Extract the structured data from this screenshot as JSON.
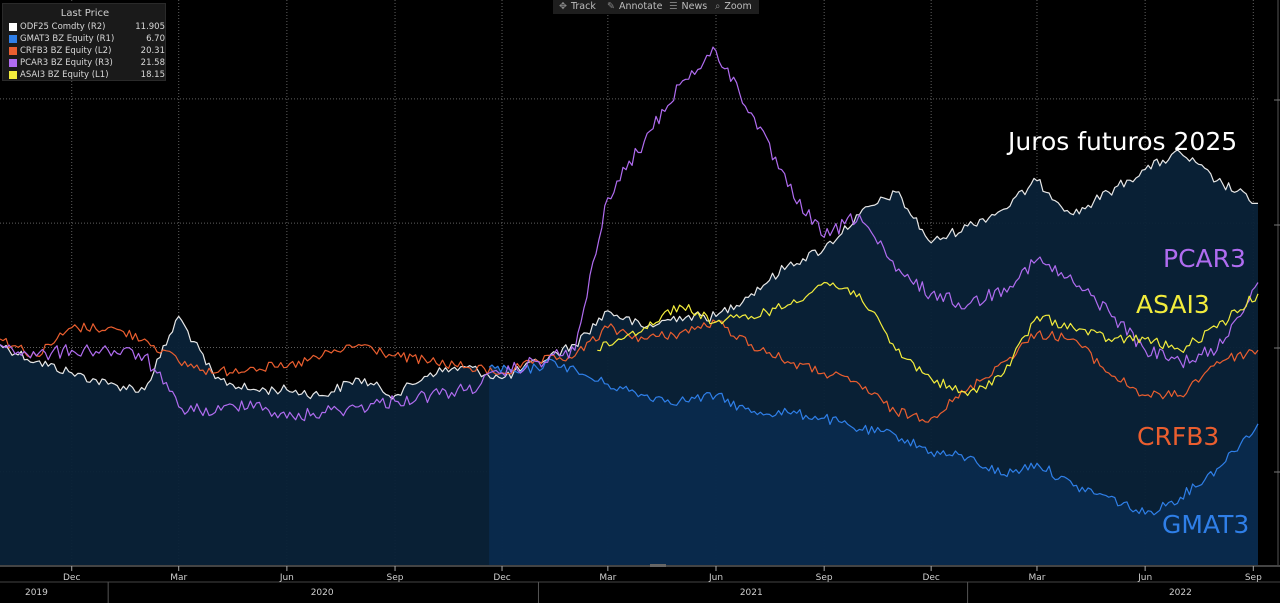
{
  "toolbar": {
    "items": [
      {
        "label": "Track"
      },
      {
        "label": "Annotate"
      },
      {
        "label": "News"
      },
      {
        "label": "Zoom"
      }
    ]
  },
  "legend": {
    "title": "Last Price",
    "rows": [
      {
        "name": "ODF25 Comdty  (R2)",
        "value": "11.905",
        "color": "#ffffff"
      },
      {
        "name": "GMAT3 BZ Equity  (R1)",
        "value": "6.70",
        "color": "#2f7fe8"
      },
      {
        "name": "CRFB3 BZ Equity  (L2)",
        "value": "20.31",
        "color": "#ea5e2f"
      },
      {
        "name": "PCAR3 BZ Equity  (R3)",
        "value": "21.58",
        "color": "#b06cf0"
      },
      {
        "name": "ASAI3 BZ Equity  (L1)",
        "value": "18.15",
        "color": "#f2ec3c"
      }
    ]
  },
  "annotations": {
    "juros": {
      "text": "Juros futuros 2025",
      "color": "#ffffff"
    },
    "pcar3": {
      "text": "PCAR3",
      "color": "#b06cf0"
    },
    "asai3": {
      "text": "ASAI3",
      "color": "#f2ec3c"
    },
    "crfb3": {
      "text": "CRFB3",
      "color": "#ea5e2f"
    },
    "gmat3": {
      "text": "GMAT3",
      "color": "#2f7fe8"
    }
  },
  "chart_data": {
    "type": "line",
    "x_range": [
      "2019-10-01",
      "2022-09-05"
    ],
    "month_ticks": [
      {
        "date": "2019-12-01",
        "label": "Dec"
      },
      {
        "date": "2020-03-01",
        "label": "Mar"
      },
      {
        "date": "2020-06-01",
        "label": "Jun"
      },
      {
        "date": "2020-09-01",
        "label": "Sep"
      },
      {
        "date": "2020-12-01",
        "label": "Dec"
      },
      {
        "date": "2021-03-01",
        "label": "Mar"
      },
      {
        "date": "2021-06-01",
        "label": "Jun"
      },
      {
        "date": "2021-09-01",
        "label": "Sep"
      },
      {
        "date": "2021-12-01",
        "label": "Dec"
      },
      {
        "date": "2022-03-01",
        "label": "Mar"
      },
      {
        "date": "2022-06-01",
        "label": "Jun"
      },
      {
        "date": "2022-09-01",
        "label": "Sep"
      }
    ],
    "year_labels": [
      {
        "date": "2019-11-01",
        "label": "2019"
      },
      {
        "date": "2020-07-01",
        "label": "2020"
      },
      {
        "date": "2021-07-01",
        "label": "2021"
      },
      {
        "date": "2022-07-01",
        "label": "2022"
      }
    ],
    "grid": true,
    "series": [
      {
        "name": "ODF25 Comdty",
        "color": "#e6e6e6",
        "fill": true,
        "points": [
          [
            "2019-10-01",
            0.61
          ],
          [
            "2019-11-01",
            0.64
          ],
          [
            "2019-12-01",
            0.66
          ],
          [
            "2020-01-01",
            0.68
          ],
          [
            "2020-02-01",
            0.69
          ],
          [
            "2020-03-01",
            0.56
          ],
          [
            "2020-04-01",
            0.67
          ],
          [
            "2020-05-01",
            0.69
          ],
          [
            "2020-06-01",
            0.69
          ],
          [
            "2020-07-01",
            0.7
          ],
          [
            "2020-08-01",
            0.67
          ],
          [
            "2020-09-01",
            0.7
          ],
          [
            "2020-10-01",
            0.66
          ],
          [
            "2020-11-01",
            0.65
          ],
          [
            "2020-12-01",
            0.67
          ],
          [
            "2021-01-01",
            0.64
          ],
          [
            "2021-02-01",
            0.61
          ],
          [
            "2021-03-01",
            0.55
          ],
          [
            "2021-04-01",
            0.58
          ],
          [
            "2021-05-01",
            0.56
          ],
          [
            "2021-06-01",
            0.56
          ],
          [
            "2021-07-01",
            0.52
          ],
          [
            "2021-08-01",
            0.47
          ],
          [
            "2021-09-01",
            0.44
          ],
          [
            "2021-10-01",
            0.38
          ],
          [
            "2021-11-01",
            0.34
          ],
          [
            "2021-12-01",
            0.43
          ],
          [
            "2022-01-01",
            0.4
          ],
          [
            "2022-02-01",
            0.37
          ],
          [
            "2022-03-01",
            0.32
          ],
          [
            "2022-04-01",
            0.38
          ],
          [
            "2022-05-01",
            0.34
          ],
          [
            "2022-06-01",
            0.3
          ],
          [
            "2022-07-01",
            0.27
          ],
          [
            "2022-08-01",
            0.32
          ],
          [
            "2022-09-05",
            0.36
          ]
        ]
      },
      {
        "name": "GMAT3 BZ Equity",
        "color": "#2f7fe8",
        "fill": true,
        "points": [
          [
            "2020-11-20",
            0.65
          ],
          [
            "2020-12-15",
            0.66
          ],
          [
            "2021-01-15",
            0.64
          ],
          [
            "2021-02-15",
            0.67
          ],
          [
            "2021-03-01",
            0.68
          ],
          [
            "2021-04-01",
            0.7
          ],
          [
            "2021-05-01",
            0.71
          ],
          [
            "2021-06-01",
            0.7
          ],
          [
            "2021-07-01",
            0.73
          ],
          [
            "2021-08-01",
            0.73
          ],
          [
            "2021-09-01",
            0.74
          ],
          [
            "2021-10-01",
            0.76
          ],
          [
            "2021-11-01",
            0.77
          ],
          [
            "2021-12-01",
            0.8
          ],
          [
            "2022-01-01",
            0.81
          ],
          [
            "2022-02-01",
            0.84
          ],
          [
            "2022-03-01",
            0.82
          ],
          [
            "2022-04-01",
            0.86
          ],
          [
            "2022-05-01",
            0.88
          ],
          [
            "2022-06-01",
            0.91
          ],
          [
            "2022-07-01",
            0.88
          ],
          [
            "2022-08-01",
            0.83
          ],
          [
            "2022-09-05",
            0.75
          ]
        ]
      },
      {
        "name": "CRFB3 BZ Equity",
        "color": "#ea5e2f",
        "fill": false,
        "points": [
          [
            "2019-10-01",
            0.6
          ],
          [
            "2019-11-01",
            0.63
          ],
          [
            "2019-12-01",
            0.58
          ],
          [
            "2020-01-01",
            0.58
          ],
          [
            "2020-02-01",
            0.6
          ],
          [
            "2020-03-01",
            0.64
          ],
          [
            "2020-04-01",
            0.66
          ],
          [
            "2020-05-01",
            0.65
          ],
          [
            "2020-06-01",
            0.65
          ],
          [
            "2020-07-01",
            0.63
          ],
          [
            "2020-08-01",
            0.61
          ],
          [
            "2020-09-01",
            0.63
          ],
          [
            "2020-10-01",
            0.64
          ],
          [
            "2020-11-01",
            0.65
          ],
          [
            "2020-12-01",
            0.66
          ],
          [
            "2021-01-01",
            0.64
          ],
          [
            "2021-02-01",
            0.63
          ],
          [
            "2021-03-01",
            0.58
          ],
          [
            "2021-04-01",
            0.6
          ],
          [
            "2021-05-01",
            0.59
          ],
          [
            "2021-06-01",
            0.57
          ],
          [
            "2021-07-01",
            0.61
          ],
          [
            "2021-08-01",
            0.64
          ],
          [
            "2021-09-01",
            0.66
          ],
          [
            "2021-10-01",
            0.68
          ],
          [
            "2021-11-01",
            0.73
          ],
          [
            "2021-12-01",
            0.74
          ],
          [
            "2022-01-01",
            0.69
          ],
          [
            "2022-02-01",
            0.64
          ],
          [
            "2022-03-01",
            0.59
          ],
          [
            "2022-04-01",
            0.6
          ],
          [
            "2022-05-01",
            0.66
          ],
          [
            "2022-06-01",
            0.7
          ],
          [
            "2022-07-01",
            0.7
          ],
          [
            "2022-08-01",
            0.64
          ],
          [
            "2022-09-05",
            0.62
          ]
        ]
      },
      {
        "name": "PCAR3 BZ Equity",
        "color": "#b06cf0",
        "fill": false,
        "points": [
          [
            "2019-10-01",
            0.61
          ],
          [
            "2019-11-01",
            0.63
          ],
          [
            "2019-12-01",
            0.62
          ],
          [
            "2020-01-01",
            0.62
          ],
          [
            "2020-02-01",
            0.63
          ],
          [
            "2020-03-01",
            0.72
          ],
          [
            "2020-04-01",
            0.73
          ],
          [
            "2020-05-01",
            0.71
          ],
          [
            "2020-06-01",
            0.74
          ],
          [
            "2020-07-01",
            0.73
          ],
          [
            "2020-08-01",
            0.72
          ],
          [
            "2020-09-01",
            0.71
          ],
          [
            "2020-10-01",
            0.7
          ],
          [
            "2020-11-01",
            0.69
          ],
          [
            "2020-12-01",
            0.66
          ],
          [
            "2021-01-01",
            0.64
          ],
          [
            "2021-02-01",
            0.62
          ],
          [
            "2021-03-01",
            0.35
          ],
          [
            "2021-04-01",
            0.25
          ],
          [
            "2021-05-01",
            0.15
          ],
          [
            "2021-06-01",
            0.09
          ],
          [
            "2021-07-01",
            0.2
          ],
          [
            "2021-08-01",
            0.33
          ],
          [
            "2021-09-01",
            0.42
          ],
          [
            "2021-10-01",
            0.38
          ],
          [
            "2021-11-01",
            0.48
          ],
          [
            "2021-12-01",
            0.52
          ],
          [
            "2022-01-01",
            0.54
          ],
          [
            "2022-02-01",
            0.51
          ],
          [
            "2022-03-01",
            0.46
          ],
          [
            "2022-04-01",
            0.5
          ],
          [
            "2022-05-01",
            0.55
          ],
          [
            "2022-06-01",
            0.62
          ],
          [
            "2022-07-01",
            0.64
          ],
          [
            "2022-08-01",
            0.62
          ],
          [
            "2022-09-05",
            0.5
          ]
        ]
      },
      {
        "name": "ASAI3 BZ Equity",
        "color": "#f2ec3c",
        "fill": false,
        "points": [
          [
            "2021-02-20",
            0.62
          ],
          [
            "2021-03-10",
            0.6
          ],
          [
            "2021-04-01",
            0.58
          ],
          [
            "2021-05-01",
            0.54
          ],
          [
            "2021-06-01",
            0.57
          ],
          [
            "2021-07-01",
            0.56
          ],
          [
            "2021-08-01",
            0.54
          ],
          [
            "2021-09-01",
            0.5
          ],
          [
            "2021-10-01",
            0.52
          ],
          [
            "2021-11-01",
            0.62
          ],
          [
            "2021-12-01",
            0.67
          ],
          [
            "2022-01-01",
            0.7
          ],
          [
            "2022-02-01",
            0.66
          ],
          [
            "2022-03-01",
            0.56
          ],
          [
            "2022-04-01",
            0.58
          ],
          [
            "2022-05-01",
            0.6
          ],
          [
            "2022-06-01",
            0.6
          ],
          [
            "2022-07-01",
            0.62
          ],
          [
            "2022-08-01",
            0.58
          ],
          [
            "2022-09-05",
            0.52
          ]
        ]
      }
    ]
  }
}
